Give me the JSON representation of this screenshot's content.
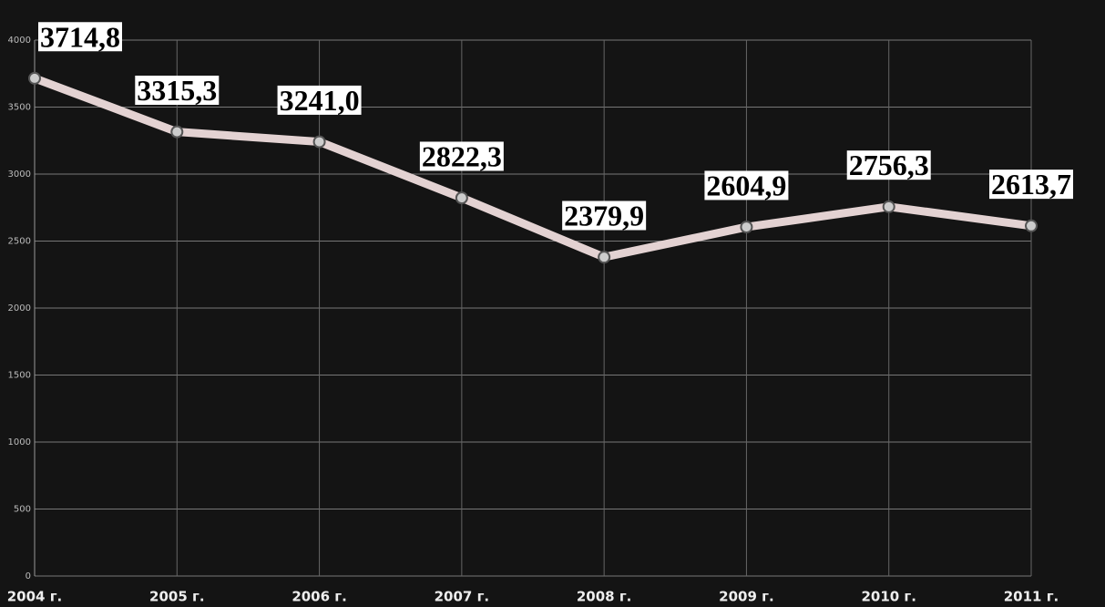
{
  "chart_data": {
    "type": "line",
    "categories": [
      "2004 г.",
      "2005 г.",
      "2006 г.",
      "2007 г.",
      "2008 г.",
      "2009 г.",
      "2010 г.",
      "2011 г."
    ],
    "values": [
      3714.8,
      3315.3,
      3241.0,
      2822.3,
      2379.9,
      2604.9,
      2756.3,
      2613.7
    ],
    "value_labels": [
      "3714,8",
      "3315,3",
      "3241,0",
      "2822,3",
      "2379,9",
      "2604,9",
      "2756,3",
      "2613,7"
    ],
    "color": "#e3d2d2",
    "ylim": [
      0,
      4000
    ],
    "yticks": [
      0,
      500,
      1000,
      1500,
      2000,
      2500,
      3000,
      3500,
      4000
    ],
    "grid": true
  }
}
